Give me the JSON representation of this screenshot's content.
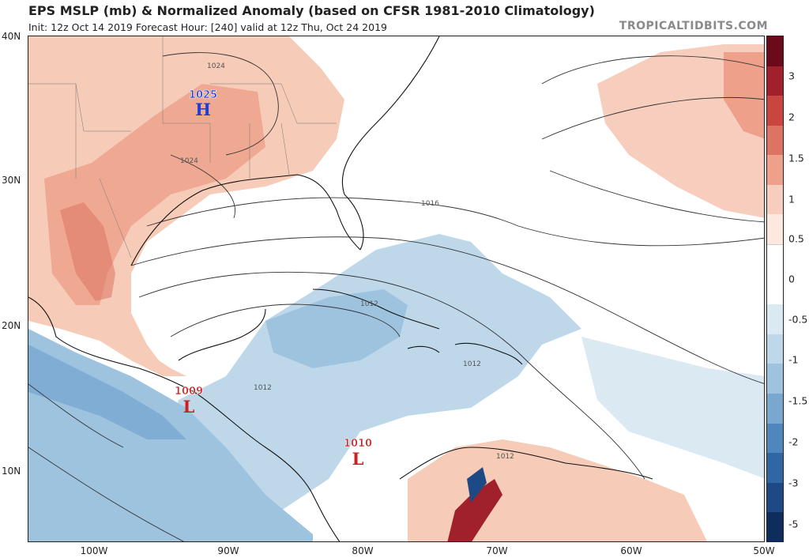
{
  "header": {
    "title": "EPS MSLP (mb) & Normalized Anomaly (based on CFSR 1981-2010 Climatology)",
    "subtitle": "Init: 12z Oct 14 2019   Forecast Hour: [240]   valid at 12z Thu, Oct 24 2019",
    "brand": "TROPICALTIDBITS.COM"
  },
  "axes": {
    "lat_labels": [
      "40N",
      "30N",
      "20N",
      "10N"
    ],
    "lon_labels": [
      "100W",
      "90W",
      "80W",
      "70W",
      "60W",
      "50W"
    ]
  },
  "pressure_centers": [
    {
      "value": "1025",
      "letter": "H",
      "color": "#1e3fd0"
    },
    {
      "value": "1009",
      "letter": "L",
      "color": "#cc1f1f"
    },
    {
      "value": "1010",
      "letter": "L",
      "color": "#cc1f1f"
    }
  ],
  "isobar_labels": [
    "1024",
    "1024",
    "1016",
    "1012",
    "1012",
    "1012",
    "1012"
  ],
  "colorbar": {
    "labels": [
      "3",
      "2",
      "1.5",
      "1",
      "0.5",
      "0",
      "-0.5",
      "-1",
      "-1.5",
      "-2",
      "-3",
      "-5"
    ],
    "colors": [
      "#6b0a1a",
      "#a0202b",
      "#c8463f",
      "#dd7463",
      "#eea08a",
      "#f7cdbd",
      "#fde8df",
      "#ffffff",
      "#ffffff",
      "#dbe9f2",
      "#bed8ea",
      "#9ec3df",
      "#78a8cf",
      "#4f87bc",
      "#2f67a3",
      "#1d4a85",
      "#0f2d5c"
    ]
  }
}
